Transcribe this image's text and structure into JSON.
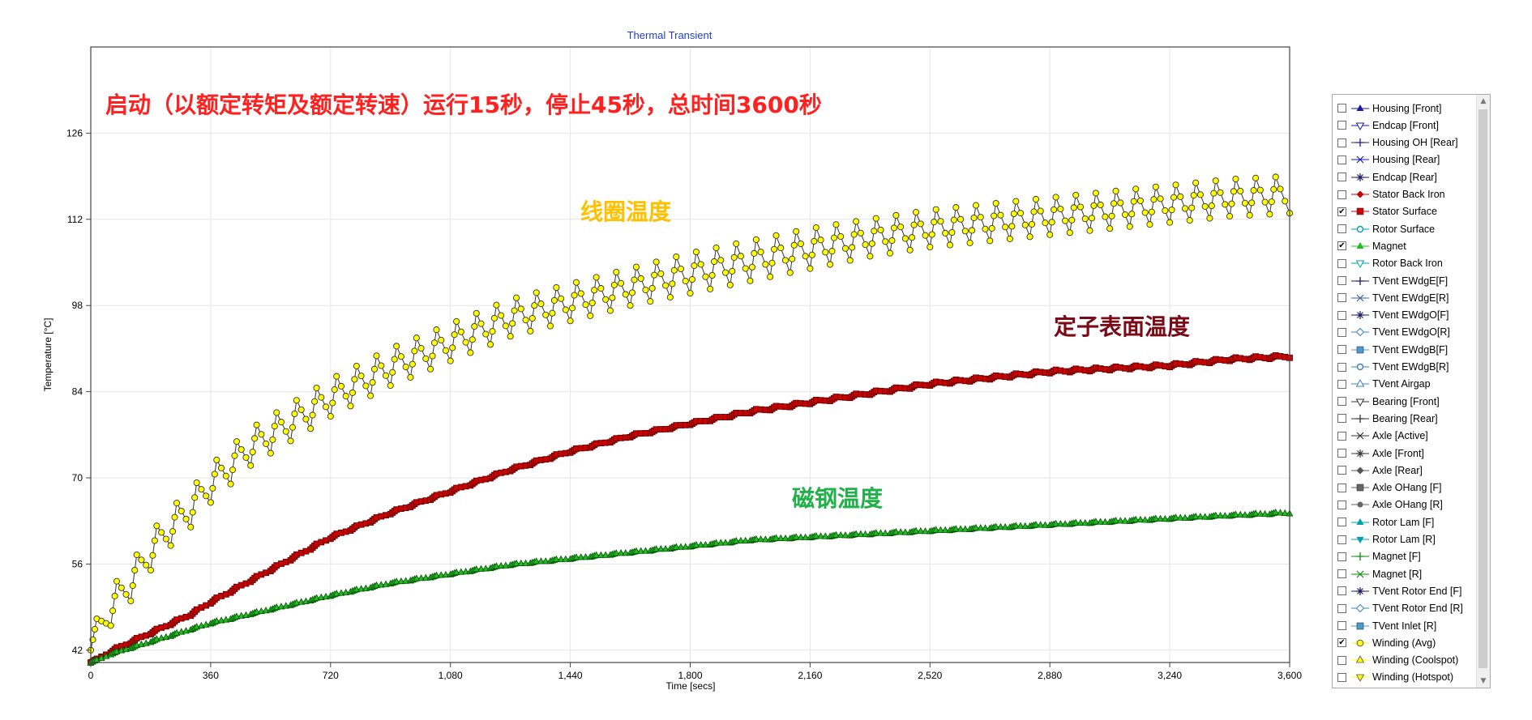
{
  "chart_data": {
    "type": "line",
    "title": "Thermal Transient",
    "xlabel": "Time [secs]",
    "ylabel": "Temperature [°C]",
    "xlim": [
      0,
      3600
    ],
    "ylim": [
      40,
      140
    ],
    "x_ticks": [
      0,
      360,
      720,
      1080,
      1440,
      1800,
      2160,
      2520,
      2880,
      3240,
      3600
    ],
    "x_tick_labels": [
      "0",
      "360",
      "720",
      "1,080",
      "1,440",
      "1,800",
      "2,160",
      "2,520",
      "2,880",
      "3,240",
      "3,600"
    ],
    "y_ticks": [
      42,
      56,
      70,
      84,
      98,
      112,
      126
    ],
    "y_tick_labels": [
      "42",
      "56",
      "70",
      "84",
      "98",
      "112",
      "126"
    ],
    "grid": true,
    "legend_position": "right",
    "cycle_period_secs": 60,
    "series": [
      {
        "name": "Winding (Avg)",
        "marker": "circle",
        "color": "#ffff00",
        "edge_color": "#333333",
        "x": [
          0,
          60,
          120,
          180,
          240,
          300,
          360,
          480,
          600,
          720,
          900,
          1080,
          1260,
          1440,
          1620,
          1800,
          1980,
          2160,
          2340,
          2520,
          2700,
          2880,
          3060,
          3240,
          3420,
          3600
        ],
        "peak": [
          45,
          52,
          56,
          61,
          65,
          68,
          72,
          78,
          82,
          86,
          91,
          95,
          99,
          101.5,
          104,
          106.5,
          108.5,
          110.5,
          112,
          113.5,
          114.5,
          115.5,
          116.5,
          117.5,
          118.5,
          119
        ],
        "trough": [
          42,
          46,
          50,
          55,
          59,
          62,
          66,
          72,
          76,
          80,
          85,
          89,
          93,
          95.5,
          98,
          100,
          102,
          104,
          106,
          107.5,
          108.5,
          109.5,
          110.5,
          111.5,
          112.5,
          113
        ]
      },
      {
        "name": "Stator Surface",
        "marker": "square",
        "color": "#cc0000",
        "edge_color": "#550000",
        "x": [
          0,
          60,
          120,
          180,
          240,
          300,
          360,
          480,
          600,
          720,
          900,
          1080,
          1260,
          1440,
          1620,
          1800,
          1980,
          2160,
          2340,
          2520,
          2700,
          2880,
          3060,
          3240,
          3420,
          3600
        ],
        "peak": [
          40,
          42,
          43.5,
          45,
          46.5,
          48,
          50,
          53.5,
          57,
          60.5,
          64.5,
          68,
          71.5,
          74.5,
          77,
          79,
          81,
          82.5,
          84,
          85.5,
          86.5,
          87.5,
          88,
          88.5,
          89.5,
          90
        ],
        "trough": [
          40,
          41.6,
          43.1,
          44.6,
          46.1,
          47.6,
          49.6,
          53.1,
          56.6,
          60.1,
          64.1,
          67.6,
          71.1,
          74.1,
          76.6,
          78.6,
          80.5,
          82,
          83.5,
          85,
          86,
          87,
          87.5,
          88,
          89,
          89.5
        ]
      },
      {
        "name": "Magnet",
        "marker": "triangle",
        "color": "#22bb22",
        "edge_color": "#005500",
        "x": [
          0,
          60,
          120,
          180,
          240,
          300,
          360,
          480,
          600,
          720,
          900,
          1080,
          1260,
          1440,
          1620,
          1800,
          1980,
          2160,
          2340,
          2520,
          2700,
          2880,
          3060,
          3240,
          3420,
          3600
        ],
        "peak": [
          40,
          41.5,
          42.5,
          43.5,
          44.5,
          45.5,
          46.5,
          48,
          49.5,
          51,
          53,
          54.5,
          56,
          57,
          58,
          59,
          60,
          60.5,
          61,
          61.5,
          62,
          62.5,
          63,
          63.5,
          64,
          64.5
        ],
        "trough": [
          40,
          41.3,
          42.3,
          43.3,
          44.3,
          45.3,
          46.3,
          47.8,
          49.3,
          50.8,
          52.8,
          54.3,
          55.8,
          56.8,
          57.8,
          58.8,
          59.8,
          60.3,
          60.8,
          61.3,
          61.8,
          62.3,
          62.8,
          63.3,
          63.8,
          64.2
        ]
      }
    ],
    "annotations": [
      {
        "text": "启动（以额定转矩及额定转速）运行15秒，停止45秒，总时间3600秒",
        "color": "#ff2020"
      },
      {
        "text": "线圈温度",
        "color": "#ffc000"
      },
      {
        "text": "定子表面温度",
        "color": "#7a0a16"
      },
      {
        "text": "磁钢温度",
        "color": "#22b04a"
      }
    ]
  },
  "legend": {
    "items": [
      {
        "label": "Housing [Front]",
        "checked": false,
        "symbol": "tri-up-filled",
        "color": "#1a1aa6"
      },
      {
        "label": "Endcap [Front]",
        "checked": false,
        "symbol": "tri-down",
        "color": "#1a1aa6"
      },
      {
        "label": "Housing OH [Rear]",
        "checked": false,
        "symbol": "plus",
        "color": "#1a1aa6"
      },
      {
        "label": "Housing [Rear]",
        "checked": false,
        "symbol": "cross",
        "color": "#1a1aa6"
      },
      {
        "label": "Endcap [Rear]",
        "checked": false,
        "symbol": "asterisk",
        "color": "#1a1a60"
      },
      {
        "label": "Stator Back Iron",
        "checked": false,
        "symbol": "diamond-filled",
        "color": "#cc0000"
      },
      {
        "label": "Stator Surface",
        "checked": true,
        "symbol": "square-filled",
        "color": "#cc0000"
      },
      {
        "label": "Rotor Surface",
        "checked": false,
        "symbol": "circle",
        "color": "#00a0b0"
      },
      {
        "label": "Magnet",
        "checked": true,
        "symbol": "tri-up-filled",
        "color": "#22bb22"
      },
      {
        "label": "Rotor Back Iron",
        "checked": false,
        "symbol": "tri-down",
        "color": "#00a0b0"
      },
      {
        "label": "TVent EWdgE[F]",
        "checked": false,
        "symbol": "plus",
        "color": "#1a1a60"
      },
      {
        "label": "TVent EWdgE[R]",
        "checked": false,
        "symbol": "cross",
        "color": "#4060a0"
      },
      {
        "label": "TVent EWdgO[F]",
        "checked": false,
        "symbol": "asterisk",
        "color": "#1a1a60"
      },
      {
        "label": "TVent EWdgO[R]",
        "checked": false,
        "symbol": "diamond",
        "color": "#4080c0"
      },
      {
        "label": "TVent EWdgB[F]",
        "checked": false,
        "symbol": "square-filled",
        "color": "#4a9ad0"
      },
      {
        "label": "TVent EWdgB[R]",
        "checked": false,
        "symbol": "circle",
        "color": "#4080c0"
      },
      {
        "label": "TVent Airgap",
        "checked": false,
        "symbol": "tri-up",
        "color": "#4080c0"
      },
      {
        "label": "Bearing [Front]",
        "checked": false,
        "symbol": "tri-down",
        "color": "#333333"
      },
      {
        "label": "Bearing [Rear]",
        "checked": false,
        "symbol": "plus",
        "color": "#333333"
      },
      {
        "label": "Axle [Active]",
        "checked": false,
        "symbol": "cross",
        "color": "#333333"
      },
      {
        "label": "Axle [Front]",
        "checked": false,
        "symbol": "asterisk",
        "color": "#333333"
      },
      {
        "label": "Axle [Rear]",
        "checked": false,
        "symbol": "diamond-filled",
        "color": "#555555"
      },
      {
        "label": "Axle OHang [F]",
        "checked": false,
        "symbol": "square-filled",
        "color": "#666666"
      },
      {
        "label": "Axle OHang [R]",
        "checked": false,
        "symbol": "circle-filled",
        "color": "#666666"
      },
      {
        "label": "Rotor Lam [F]",
        "checked": false,
        "symbol": "tri-up-filled",
        "color": "#00a0b0"
      },
      {
        "label": "Rotor Lam [R]",
        "checked": false,
        "symbol": "tri-down-filled",
        "color": "#00a0b0"
      },
      {
        "label": "Magnet [F]",
        "checked": false,
        "symbol": "plus",
        "color": "#108a10"
      },
      {
        "label": "Magnet [R]",
        "checked": false,
        "symbol": "cross",
        "color": "#108a10"
      },
      {
        "label": "TVent Rotor End [F]",
        "checked": false,
        "symbol": "asterisk",
        "color": "#1a1a60"
      },
      {
        "label": "TVent Rotor End [R]",
        "checked": false,
        "symbol": "diamond",
        "color": "#4080c0"
      },
      {
        "label": "TVent Inlet [R]",
        "checked": false,
        "symbol": "square-filled",
        "color": "#4a9ad0"
      },
      {
        "label": "Winding (Avg)",
        "checked": true,
        "symbol": "circle-yellow",
        "color": "#ffff00"
      },
      {
        "label": "Winding (Coolspot)",
        "checked": false,
        "symbol": "tri-up-yellow",
        "color": "#ffff00"
      },
      {
        "label": "Winding (Hotspot)",
        "checked": false,
        "symbol": "tri-down-yellow",
        "color": "#ffff00"
      }
    ]
  }
}
